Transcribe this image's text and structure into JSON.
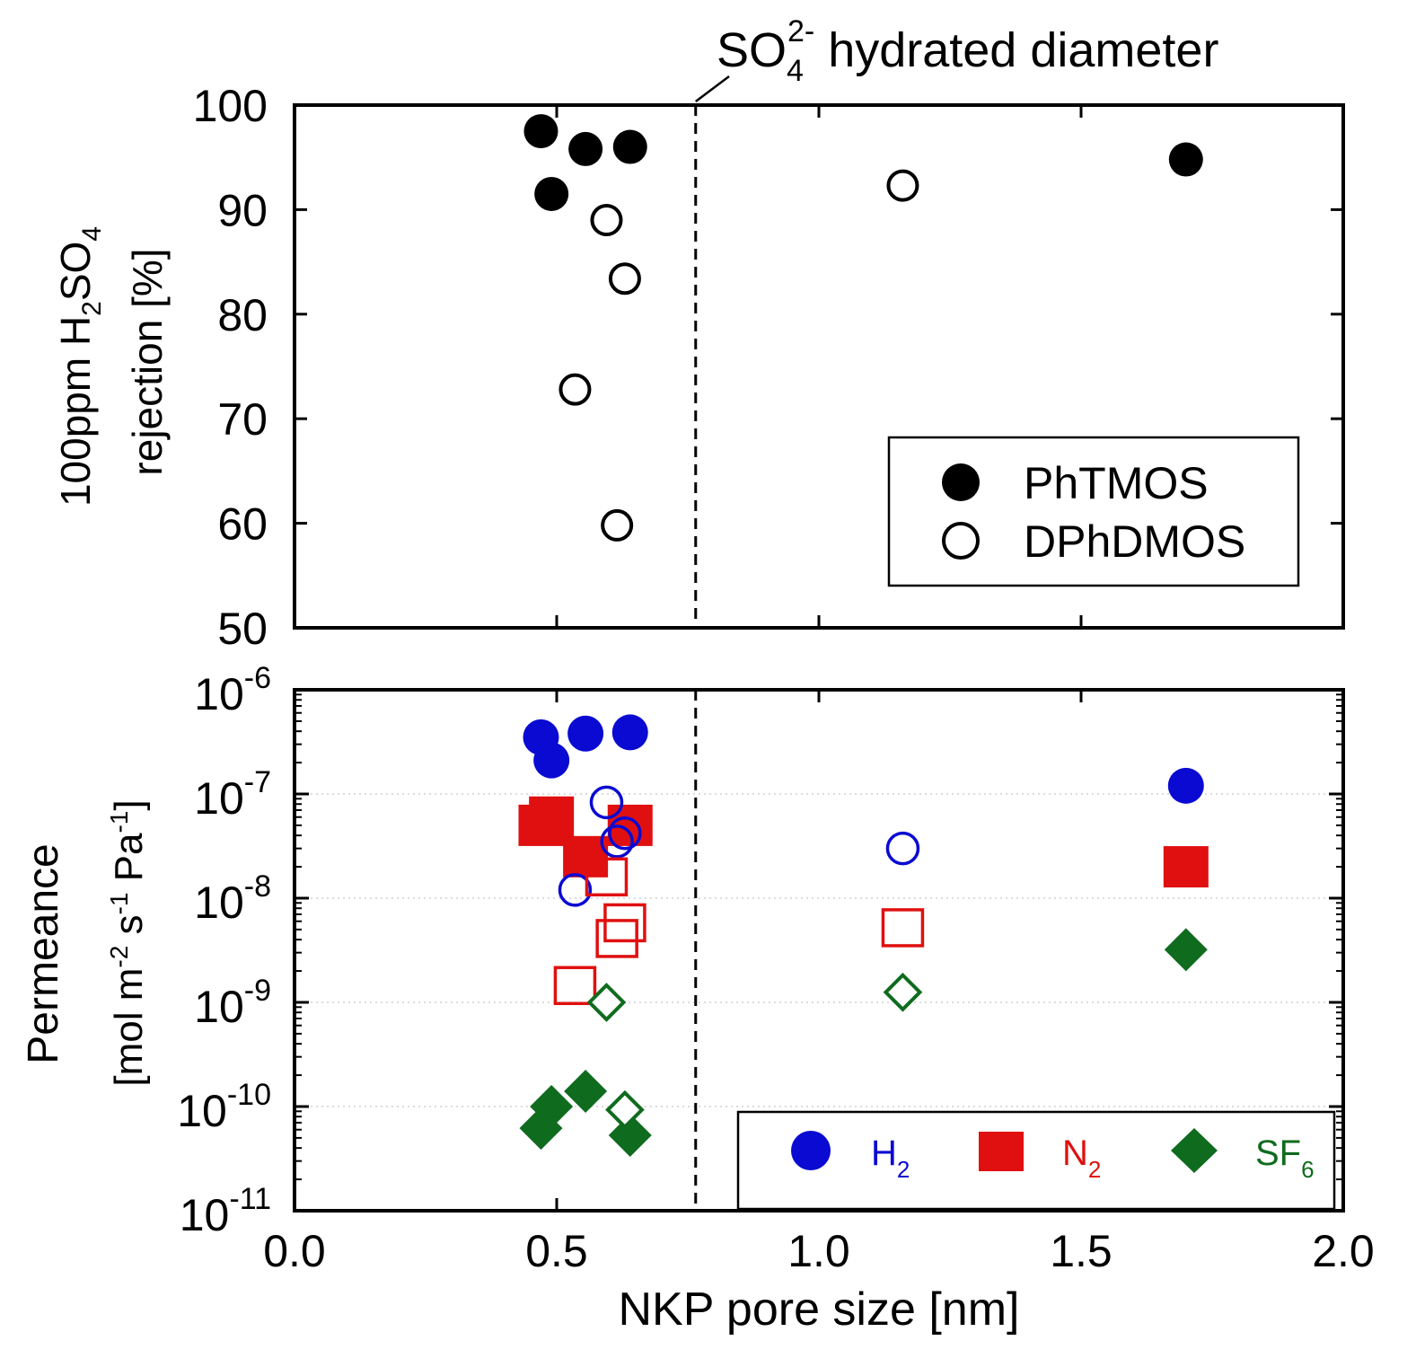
{
  "chart_data": [
    {
      "type": "scatter",
      "xlabel": "",
      "ylabel_line1": "100ppm H",
      "ylabel_sub1": "2",
      "ylabel_mid": "SO",
      "ylabel_sub2": "4",
      "ylabel_line2": "rejection [%]",
      "xlim": [
        0.0,
        2.0
      ],
      "ylim": [
        50,
        100
      ],
      "yticks": [
        "50",
        "60",
        "70",
        "80",
        "90",
        "100"
      ],
      "annotation": {
        "text_main": "SO",
        "text_sub": "4",
        "text_sup": "2-",
        "text_rest": " hydrated diameter",
        "x": 0.765
      },
      "legend": {
        "placement": "bottom-right"
      },
      "series": [
        {
          "name": "PhTMOS",
          "marker": "filled-circle",
          "color": "#000000",
          "x": [
            0.47,
            0.49,
            0.555,
            0.64,
            1.7
          ],
          "y": [
            97.5,
            91.5,
            95.8,
            96.0,
            94.8
          ]
        },
        {
          "name": "DPhDMOS",
          "marker": "open-circle",
          "color": "#000000",
          "x": [
            0.595,
            0.63,
            0.535,
            0.615,
            1.16
          ],
          "y": [
            89.0,
            83.4,
            72.8,
            59.8,
            92.3
          ]
        }
      ]
    },
    {
      "type": "scatter",
      "xlabel": "NKP pore size [nm]",
      "ylabel_line1": "Permeance",
      "ylabel_line2": "[mol m",
      "ylabel_sup1": "-2",
      "ylabel_s": " s",
      "ylabel_sup2": "-1",
      "ylabel_pa": " Pa",
      "ylabel_sup3": "-1",
      "ylabel_end": "]",
      "yscale": "log",
      "xlim": [
        0.0,
        2.0
      ],
      "ylim": [
        1e-11,
        1e-06
      ],
      "xticks": [
        "0.0",
        "0.5",
        "1.0",
        "1.5",
        "2.0"
      ],
      "yticks": [
        {
          "base": "10",
          "exp": "-11",
          "value": 1e-11
        },
        {
          "base": "10",
          "exp": "-10",
          "value": 1e-10
        },
        {
          "base": "10",
          "exp": "-9",
          "value": 1e-09
        },
        {
          "base": "10",
          "exp": "-8",
          "value": 1e-08
        },
        {
          "base": "10",
          "exp": "-7",
          "value": 1e-07
        },
        {
          "base": "10",
          "exp": "-6",
          "value": 1e-06
        }
      ],
      "legend": {
        "placement": "bottom-right"
      },
      "series": [
        {
          "name": "H",
          "sub": "2",
          "marker": "filled-circle",
          "color": "#0a0ad2",
          "x": [
            0.47,
            0.49,
            0.555,
            0.64,
            1.7
          ],
          "y": [
            3.5e-07,
            2.1e-07,
            3.8e-07,
            3.9e-07,
            1.2e-07
          ]
        },
        {
          "name": "N",
          "sub": "2",
          "marker": "filled-square",
          "color": "#e01010",
          "x": [
            0.47,
            0.49,
            0.555,
            0.64,
            1.7
          ],
          "y": [
            5e-08,
            6e-08,
            2.5e-08,
            5e-08,
            2e-08
          ]
        },
        {
          "name": "SF",
          "sub": "6",
          "marker": "filled-diamond",
          "color": "#0f6b1e",
          "x": [
            0.47,
            0.49,
            0.555,
            0.64,
            1.7
          ],
          "y": [
            6.2e-11,
            1e-10,
            1.4e-10,
            5.3e-11,
            3.2e-09
          ]
        },
        {
          "name": "H2 (DPhDMOS)",
          "marker": "open-circle",
          "color": "#0a0ad2",
          "x": [
            0.595,
            0.63,
            0.535,
            0.615,
            1.16
          ],
          "y": [
            8.3e-08,
            4.2e-08,
            1.2e-08,
            3.5e-08,
            3e-08
          ]
        },
        {
          "name": "N2 (DPhDMOS)",
          "marker": "open-square",
          "color": "#e01010",
          "x": [
            0.595,
            0.63,
            0.535,
            0.615,
            1.16
          ],
          "y": [
            1.6e-08,
            5.8e-09,
            1.45e-09,
            4.1e-09,
            5.2e-09
          ]
        },
        {
          "name": "SF6 (DPhDMOS)",
          "marker": "open-diamond",
          "color": "#0f6b1e",
          "x": [
            0.595,
            0.63,
            1.16
          ],
          "y": [
            1e-09,
            9.3e-11,
            1.25e-09
          ]
        }
      ]
    }
  ]
}
